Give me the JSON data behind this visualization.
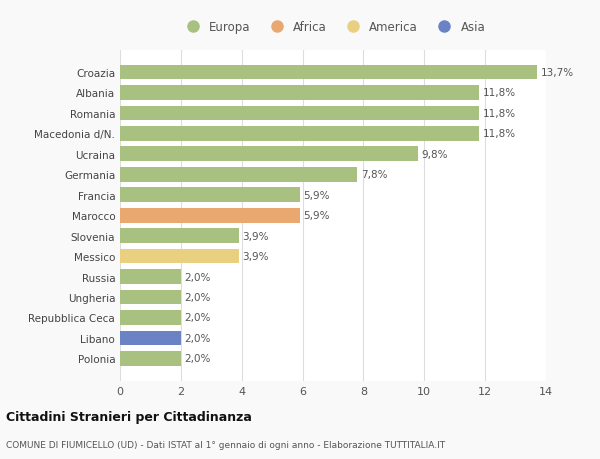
{
  "categories": [
    "Polonia",
    "Libano",
    "Repubblica Ceca",
    "Ungheria",
    "Russia",
    "Messico",
    "Slovenia",
    "Marocco",
    "Francia",
    "Germania",
    "Ucraina",
    "Macedonia d/N.",
    "Romania",
    "Albania",
    "Croazia"
  ],
  "values": [
    2.0,
    2.0,
    2.0,
    2.0,
    2.0,
    3.9,
    3.9,
    5.9,
    5.9,
    7.8,
    9.8,
    11.8,
    11.8,
    11.8,
    13.7
  ],
  "labels": [
    "2,0%",
    "2,0%",
    "2,0%",
    "2,0%",
    "2,0%",
    "3,9%",
    "3,9%",
    "5,9%",
    "5,9%",
    "7,8%",
    "9,8%",
    "11,8%",
    "11,8%",
    "11,8%",
    "13,7%"
  ],
  "colors": [
    "#a8c080",
    "#6b83c4",
    "#a8c080",
    "#a8c080",
    "#a8c080",
    "#e8d080",
    "#a8c080",
    "#e8a870",
    "#a8c080",
    "#a8c080",
    "#a8c080",
    "#a8c080",
    "#a8c080",
    "#a8c080",
    "#a8c080"
  ],
  "legend": [
    {
      "label": "Europa",
      "color": "#a8c080"
    },
    {
      "label": "Africa",
      "color": "#e8a870"
    },
    {
      "label": "America",
      "color": "#e8d080"
    },
    {
      "label": "Asia",
      "color": "#6b83c4"
    }
  ],
  "title": "Cittadini Stranieri per Cittadinanza",
  "subtitle": "COMUNE DI FIUMICELLO (UD) - Dati ISTAT al 1° gennaio di ogni anno - Elaborazione TUTTITALIA.IT",
  "xlim": [
    0,
    14
  ],
  "xticks": [
    0,
    2,
    4,
    6,
    8,
    10,
    12,
    14
  ],
  "plot_bg_color": "#ffffff",
  "fig_bg_color": "#f9f9f9",
  "bar_alpha": 1.0,
  "grid_color": "#dddddd",
  "bar_height": 0.72
}
